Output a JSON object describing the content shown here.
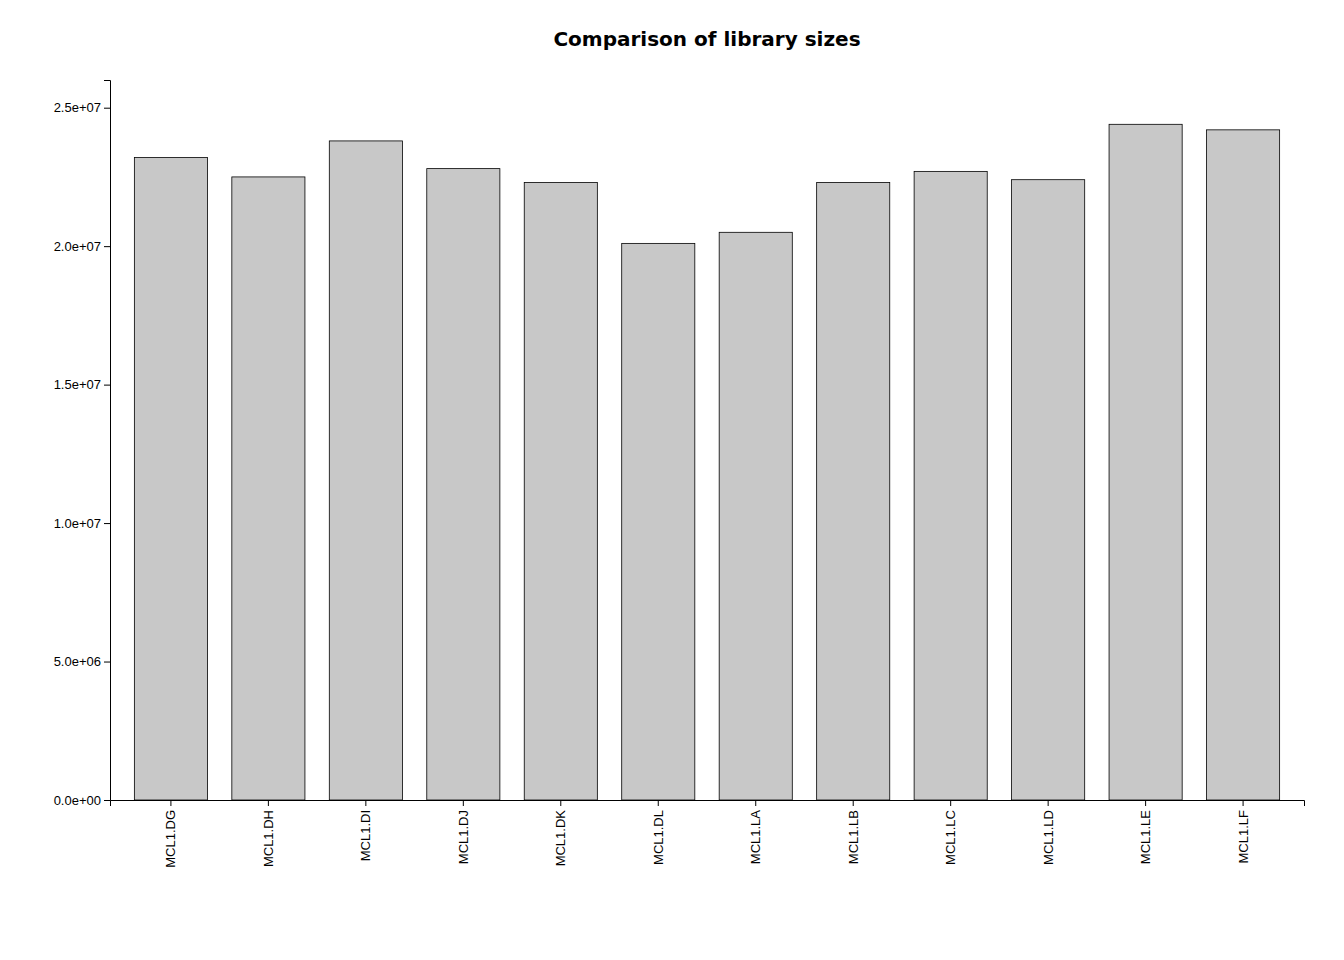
{
  "chart_data": {
    "type": "bar",
    "title": "Comparison of library sizes",
    "categories": [
      "MCL1.DG",
      "MCL1.DH",
      "MCL1.DI",
      "MCL1.DJ",
      "MCL1.DK",
      "MCL1.DL",
      "MCL1.LA",
      "MCL1.LB",
      "MCL1.LC",
      "MCL1.LD",
      "MCL1.LE",
      "MCL1.LF"
    ],
    "values": [
      23200000,
      22500000,
      23800000,
      22800000,
      22300000,
      20100000,
      20500000,
      22300000,
      22700000,
      22400000,
      24400000,
      24200000
    ],
    "color": "#c8c8c8",
    "ylim": [
      0,
      26000000
    ],
    "yticks": [
      {
        "value": 0,
        "label": "0.0e+00"
      },
      {
        "value": 5000000,
        "label": "5.0e+06"
      },
      {
        "value": 10000000,
        "label": "1.0e+07"
      },
      {
        "value": 15000000,
        "label": "1.5e+07"
      },
      {
        "value": 20000000,
        "label": "2.0e+07"
      },
      {
        "value": 25000000,
        "label": "2.5e+07"
      }
    ],
    "grid": false
  }
}
